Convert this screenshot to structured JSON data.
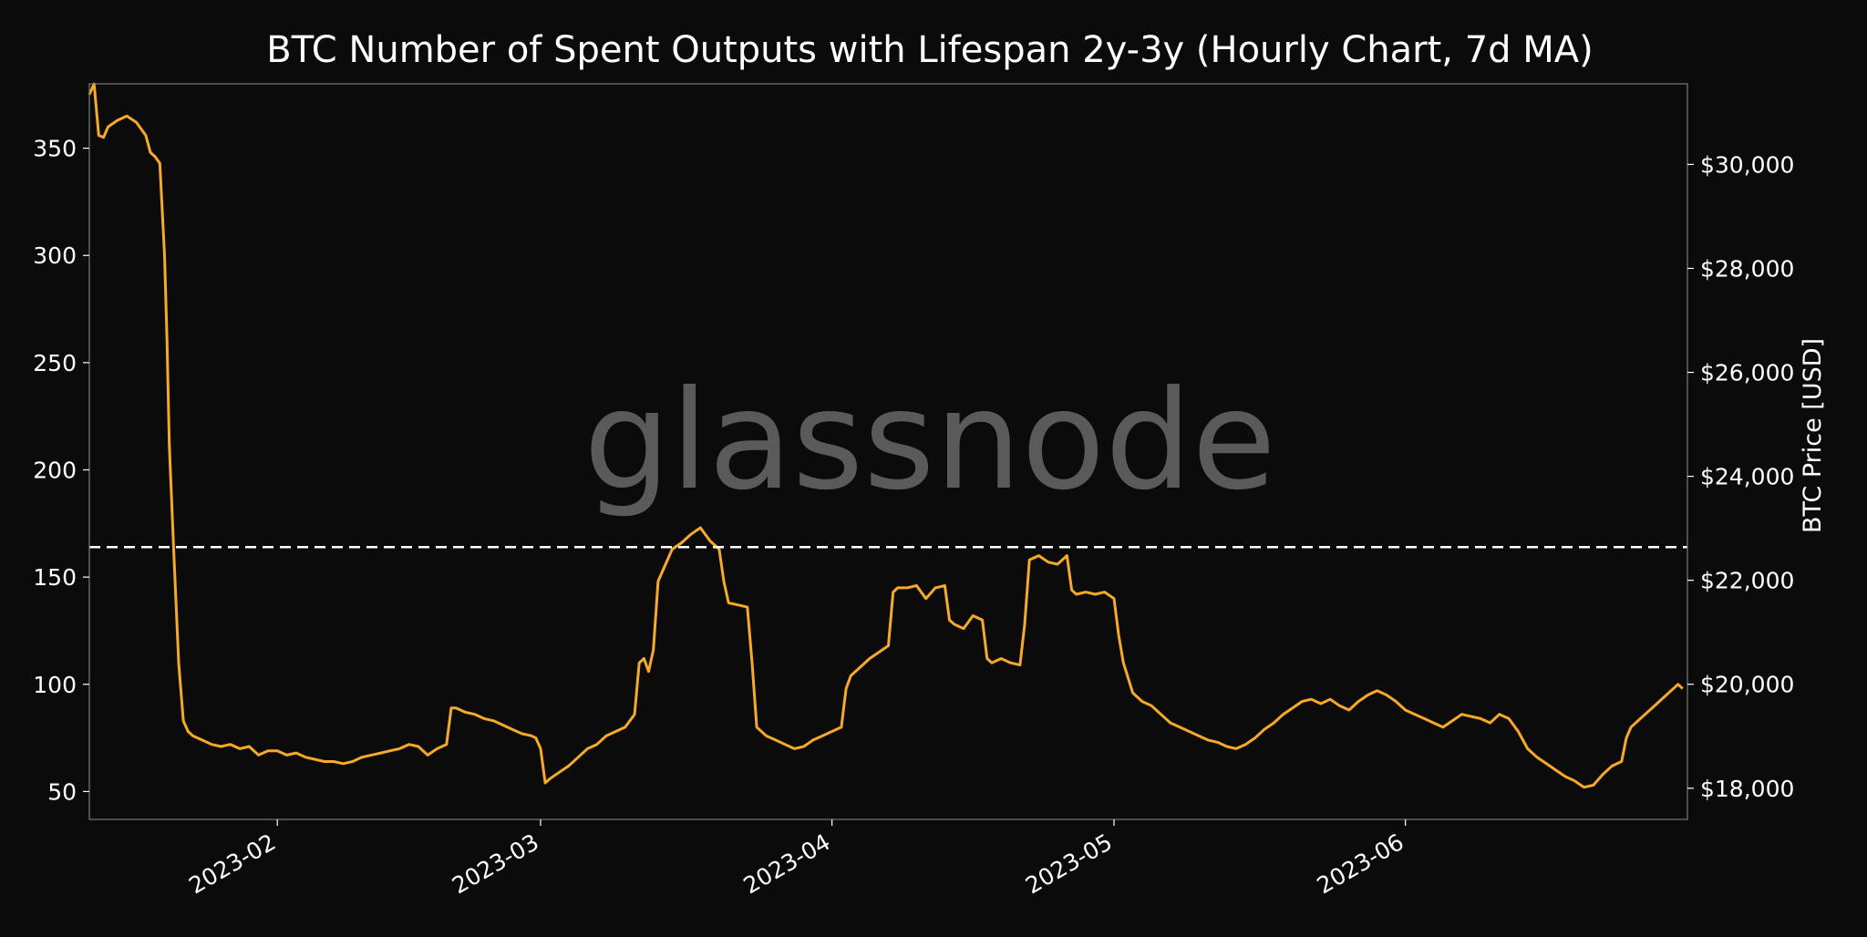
{
  "chart_data": {
    "type": "line",
    "title": "BTC Number of Spent Outputs with Lifespan 2y-3y (Hourly Chart, 7d MA)",
    "watermark": "glassnode",
    "x_range": [
      "2023-01-12",
      "2023-07-01"
    ],
    "x_ticks": [
      {
        "date": "2023-02-01",
        "label": "2023-02"
      },
      {
        "date": "2023-03-01",
        "label": "2023-03"
      },
      {
        "date": "2023-04-01",
        "label": "2023-04"
      },
      {
        "date": "2023-05-01",
        "label": "2023-05"
      },
      {
        "date": "2023-06-01",
        "label": "2023-06"
      }
    ],
    "y_left": {
      "range": [
        37,
        380
      ],
      "ticks": [
        50,
        100,
        150,
        200,
        250,
        300,
        350
      ],
      "tick_labels": [
        "50",
        "100",
        "150",
        "200",
        "250",
        "300",
        "350"
      ],
      "label": ""
    },
    "y_right": {
      "range": [
        17400,
        31550
      ],
      "ticks": [
        18000,
        20000,
        22000,
        24000,
        26000,
        28000,
        30000
      ],
      "tick_labels": [
        "$18,000",
        "$20,000",
        "$22,000",
        "$24,000",
        "$26,000",
        "$28,000",
        "$30,000"
      ],
      "label": "BTC Price [USD]"
    },
    "reference_line": {
      "axis": "left",
      "value": 164,
      "style": "dashed",
      "color": "#ffffff"
    },
    "grid": false,
    "colors": {
      "background": "#0b0b0b",
      "spent_outputs": "#f7a928",
      "price": "#8c8c8c",
      "text": "#ffffff",
      "frame": "#7a7a7a",
      "watermark": "#5a5a5a"
    },
    "series": [
      {
        "axis": "left",
        "color": "#f7a928",
        "points": [
          [
            "2023-01-12",
            375
          ],
          [
            "2023-01-12T12",
            380
          ],
          [
            "2023-01-13",
            356
          ],
          [
            "2023-01-13T12",
            355
          ],
          [
            "2023-01-14",
            360
          ],
          [
            "2023-01-15",
            363
          ],
          [
            "2023-01-16",
            365
          ],
          [
            "2023-01-17",
            362
          ],
          [
            "2023-01-18",
            356
          ],
          [
            "2023-01-18T12",
            348
          ],
          [
            "2023-01-19",
            346
          ],
          [
            "2023-01-19T12",
            343
          ],
          [
            "2023-01-20",
            300
          ],
          [
            "2023-01-20T06",
            262
          ],
          [
            "2023-01-20T12",
            212
          ],
          [
            "2023-01-21",
            160
          ],
          [
            "2023-01-21T12",
            110
          ],
          [
            "2023-01-22",
            83
          ],
          [
            "2023-01-22T12",
            78
          ],
          [
            "2023-01-23",
            76
          ],
          [
            "2023-01-24",
            74
          ],
          [
            "2023-01-25",
            72
          ],
          [
            "2023-01-26",
            71
          ],
          [
            "2023-01-27",
            72
          ],
          [
            "2023-01-28",
            70
          ],
          [
            "2023-01-29",
            71
          ],
          [
            "2023-01-30",
            67
          ],
          [
            "2023-01-31",
            69
          ],
          [
            "2023-02-01",
            69
          ],
          [
            "2023-02-02",
            67
          ],
          [
            "2023-02-03",
            68
          ],
          [
            "2023-02-04",
            66
          ],
          [
            "2023-02-05",
            65
          ],
          [
            "2023-02-06",
            64
          ],
          [
            "2023-02-07",
            64
          ],
          [
            "2023-02-08",
            63
          ],
          [
            "2023-02-09",
            64
          ],
          [
            "2023-02-10",
            66
          ],
          [
            "2023-02-11",
            67
          ],
          [
            "2023-02-12",
            68
          ],
          [
            "2023-02-13",
            69
          ],
          [
            "2023-02-14",
            70
          ],
          [
            "2023-02-15",
            72
          ],
          [
            "2023-02-16",
            71
          ],
          [
            "2023-02-17",
            67
          ],
          [
            "2023-02-18",
            70
          ],
          [
            "2023-02-19",
            72
          ],
          [
            "2023-02-19T12",
            89
          ],
          [
            "2023-02-20",
            89
          ],
          [
            "2023-02-21",
            87
          ],
          [
            "2023-02-22",
            86
          ],
          [
            "2023-02-23",
            84
          ],
          [
            "2023-02-24",
            83
          ],
          [
            "2023-02-25",
            81
          ],
          [
            "2023-02-26",
            79
          ],
          [
            "2023-02-27",
            77
          ],
          [
            "2023-02-28",
            76
          ],
          [
            "2023-02-28T12",
            75
          ],
          [
            "2023-03-01",
            70
          ],
          [
            "2023-03-01T12",
            54
          ],
          [
            "2023-03-02",
            56
          ],
          [
            "2023-03-03",
            59
          ],
          [
            "2023-03-04",
            62
          ],
          [
            "2023-03-05",
            66
          ],
          [
            "2023-03-06",
            70
          ],
          [
            "2023-03-07",
            72
          ],
          [
            "2023-03-08",
            76
          ],
          [
            "2023-03-09",
            78
          ],
          [
            "2023-03-10",
            80
          ],
          [
            "2023-03-11",
            86
          ],
          [
            "2023-03-11T12",
            110
          ],
          [
            "2023-03-12",
            112
          ],
          [
            "2023-03-12T12",
            106
          ],
          [
            "2023-03-13",
            116
          ],
          [
            "2023-03-13T12",
            148
          ],
          [
            "2023-03-14",
            153
          ],
          [
            "2023-03-15",
            163
          ],
          [
            "2023-03-16",
            166
          ],
          [
            "2023-03-17",
            170
          ],
          [
            "2023-03-18",
            173
          ],
          [
            "2023-03-19",
            167
          ],
          [
            "2023-03-20",
            163
          ],
          [
            "2023-03-20T12",
            148
          ],
          [
            "2023-03-21",
            138
          ],
          [
            "2023-03-22",
            137
          ],
          [
            "2023-03-23",
            136
          ],
          [
            "2023-03-23T12",
            110
          ],
          [
            "2023-03-24",
            80
          ],
          [
            "2023-03-25",
            76
          ],
          [
            "2023-03-26",
            74
          ],
          [
            "2023-03-27",
            72
          ],
          [
            "2023-03-28",
            70
          ],
          [
            "2023-03-29",
            71
          ],
          [
            "2023-03-30",
            74
          ],
          [
            "2023-03-31",
            76
          ],
          [
            "2023-04-01",
            78
          ],
          [
            "2023-04-02",
            80
          ],
          [
            "2023-04-02T12",
            98
          ],
          [
            "2023-04-03",
            104
          ],
          [
            "2023-04-04",
            108
          ],
          [
            "2023-04-05",
            112
          ],
          [
            "2023-04-06",
            115
          ],
          [
            "2023-04-07",
            118
          ],
          [
            "2023-04-07T12",
            143
          ],
          [
            "2023-04-08",
            145
          ],
          [
            "2023-04-09",
            145
          ],
          [
            "2023-04-10",
            146
          ],
          [
            "2023-04-11",
            140
          ],
          [
            "2023-04-12",
            145
          ],
          [
            "2023-04-13",
            146
          ],
          [
            "2023-04-13T12",
            130
          ],
          [
            "2023-04-14",
            128
          ],
          [
            "2023-04-15",
            126
          ],
          [
            "2023-04-16",
            132
          ],
          [
            "2023-04-17",
            130
          ],
          [
            "2023-04-17T12",
            112
          ],
          [
            "2023-04-18",
            110
          ],
          [
            "2023-04-19",
            112
          ],
          [
            "2023-04-20",
            110
          ],
          [
            "2023-04-21",
            109
          ],
          [
            "2023-04-21T12",
            128
          ],
          [
            "2023-04-22",
            158
          ],
          [
            "2023-04-23",
            160
          ],
          [
            "2023-04-24",
            157
          ],
          [
            "2023-04-25",
            156
          ],
          [
            "2023-04-26",
            160
          ],
          [
            "2023-04-26T12",
            144
          ],
          [
            "2023-04-27",
            142
          ],
          [
            "2023-04-28",
            143
          ],
          [
            "2023-04-29",
            142
          ],
          [
            "2023-04-30",
            143
          ],
          [
            "2023-05-01",
            140
          ],
          [
            "2023-05-01T12",
            123
          ],
          [
            "2023-05-02",
            110
          ],
          [
            "2023-05-03",
            96
          ],
          [
            "2023-05-04",
            92
          ],
          [
            "2023-05-05",
            90
          ],
          [
            "2023-05-06",
            86
          ],
          [
            "2023-05-07",
            82
          ],
          [
            "2023-05-08",
            80
          ],
          [
            "2023-05-09",
            78
          ],
          [
            "2023-05-10",
            76
          ],
          [
            "2023-05-11",
            74
          ],
          [
            "2023-05-12",
            73
          ],
          [
            "2023-05-13",
            71
          ],
          [
            "2023-05-14",
            70
          ],
          [
            "2023-05-15",
            72
          ],
          [
            "2023-05-16",
            75
          ],
          [
            "2023-05-17",
            79
          ],
          [
            "2023-05-18",
            82
          ],
          [
            "2023-05-19",
            86
          ],
          [
            "2023-05-20",
            89
          ],
          [
            "2023-05-21",
            92
          ],
          [
            "2023-05-22",
            93
          ],
          [
            "2023-05-23",
            91
          ],
          [
            "2023-05-24",
            93
          ],
          [
            "2023-05-25",
            90
          ],
          [
            "2023-05-26",
            88
          ],
          [
            "2023-05-27",
            92
          ],
          [
            "2023-05-28",
            95
          ],
          [
            "2023-05-29",
            97
          ],
          [
            "2023-05-30",
            95
          ],
          [
            "2023-05-31",
            92
          ],
          [
            "2023-06-01",
            88
          ],
          [
            "2023-06-02",
            86
          ],
          [
            "2023-06-03",
            84
          ],
          [
            "2023-06-04",
            82
          ],
          [
            "2023-06-05",
            80
          ],
          [
            "2023-06-06",
            83
          ],
          [
            "2023-06-07",
            86
          ],
          [
            "2023-06-08",
            85
          ],
          [
            "2023-06-09",
            84
          ],
          [
            "2023-06-10",
            82
          ],
          [
            "2023-06-11",
            86
          ],
          [
            "2023-06-12",
            84
          ],
          [
            "2023-06-13",
            78
          ],
          [
            "2023-06-14",
            70
          ],
          [
            "2023-06-15",
            66
          ],
          [
            "2023-06-16",
            63
          ],
          [
            "2023-06-17",
            60
          ],
          [
            "2023-06-18",
            57
          ],
          [
            "2023-06-19",
            55
          ],
          [
            "2023-06-20",
            52
          ],
          [
            "2023-06-21",
            53
          ],
          [
            "2023-06-22",
            58
          ],
          [
            "2023-06-23",
            62
          ],
          [
            "2023-06-24",
            64
          ],
          [
            "2023-06-24T12",
            75
          ],
          [
            "2023-06-25",
            80
          ],
          [
            "2023-06-26",
            84
          ],
          [
            "2023-06-27",
            88
          ],
          [
            "2023-06-28",
            92
          ],
          [
            "2023-06-29",
            96
          ],
          [
            "2023-06-30",
            100
          ],
          [
            "2023-06-30T12",
            98
          ]
        ]
      },
      {
        "axis": "right",
        "color": "#8c8c8c",
        "points": []
      }
    ]
  }
}
